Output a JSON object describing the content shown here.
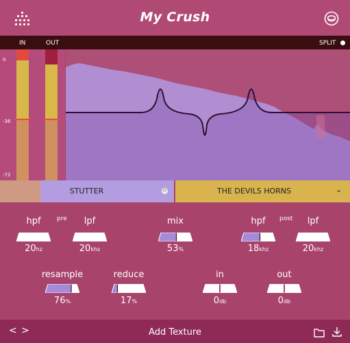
{
  "header": {
    "title": "My Crush",
    "logo_icon": "dot-grid-logo-icon",
    "menu_icon": "disc-menu-icon"
  },
  "meters": {
    "in_label": "IN",
    "out_label": "OUT",
    "scale": [
      "0",
      "-36",
      "-72"
    ],
    "split_label": "SPLIT"
  },
  "modes": {
    "stutter_label": "STUTTER",
    "stutter_icon": "circle-arrow-icon",
    "texture_label": "THE DEVILS HORNS",
    "texture_chevron": "⌄"
  },
  "controls": {
    "pre_label": "pre",
    "post_label": "post",
    "hpf_pre": {
      "label": "hpf",
      "value": "20",
      "unit": "hz",
      "fill": 0.0
    },
    "lpf_pre": {
      "label": "lpf",
      "value": "20",
      "unit": "khz",
      "fill": 1.0
    },
    "mix": {
      "label": "mix",
      "value": "53",
      "unit": "%",
      "fill": 0.53
    },
    "hpf_post": {
      "label": "hpf",
      "value": "18",
      "unit": "khz",
      "fill": 0.55
    },
    "lpf_post": {
      "label": "lpf",
      "value": "20",
      "unit": "khz",
      "fill": 1.0
    },
    "resample": {
      "label": "resample",
      "value": "76",
      "unit": "%",
      "fill": 0.76
    },
    "reduce": {
      "label": "reduce",
      "value": "17",
      "unit": "%",
      "fill": 0.17
    },
    "in_gain": {
      "label": "in",
      "value": "0",
      "unit": "db",
      "fill": 0.5
    },
    "out_gain": {
      "label": "out",
      "value": "0",
      "unit": "db",
      "fill": 0.5
    }
  },
  "footer": {
    "prev": "<",
    "next": ">",
    "add_texture_label": "Add Texture",
    "folder_icon": "folder-icon",
    "download_icon": "download-icon"
  }
}
